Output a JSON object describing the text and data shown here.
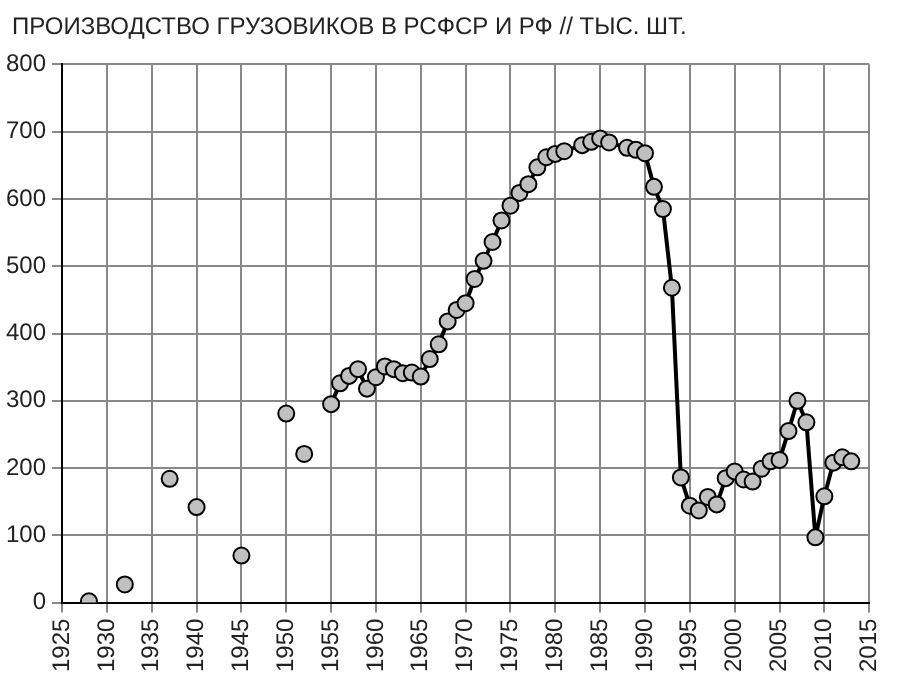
{
  "chart_data": {
    "type": "line",
    "title": "ПРОИЗВОДСТВО ГРУЗОВИКОВ В РСФСР И РФ // ТЫС. ШТ.",
    "xlim": [
      1925,
      2015
    ],
    "xticks": [
      1925,
      1930,
      1935,
      1940,
      1945,
      1950,
      1955,
      1960,
      1965,
      1970,
      1975,
      1980,
      1985,
      1990,
      1995,
      2000,
      2005,
      2010,
      2015
    ],
    "ylim": [
      0,
      800
    ],
    "yticks": [
      0,
      100,
      200,
      300,
      400,
      500,
      600,
      700,
      800
    ],
    "grid": true,
    "legend": false,
    "marker": "circle",
    "line_style": "solid",
    "series": [
      {
        "type": "scatter",
        "color": "#c0c0c0",
        "x": [
          1928,
          1932,
          1937,
          1940,
          1945,
          1950,
          1952
        ],
        "values": [
          2,
          27,
          184,
          142,
          70,
          281,
          221
        ]
      },
      {
        "type": "line",
        "color": "#000000",
        "x": [
          1955,
          1956,
          1957,
          1958,
          1959,
          1960,
          1961,
          1962,
          1963,
          1964,
          1965,
          1966,
          1967,
          1968,
          1969,
          1970,
          1971,
          1972,
          1973,
          1974,
          1975,
          1976,
          1977,
          1978,
          1979,
          1980,
          1981,
          1983,
          1984,
          1985,
          1986,
          1988,
          1989,
          1990,
          1991,
          1992,
          1993,
          1994,
          1995,
          1996,
          1997,
          1998,
          1999,
          2000,
          2001,
          2002,
          2003,
          2004,
          2005,
          2006,
          2007,
          2008,
          2009,
          2010,
          2011,
          2012,
          2013
        ],
        "values": [
          295,
          326,
          337,
          347,
          318,
          335,
          351,
          347,
          341,
          342,
          336,
          362,
          384,
          418,
          435,
          445,
          481,
          508,
          536,
          568,
          590,
          609,
          622,
          647,
          662,
          667,
          671,
          680,
          685,
          690,
          684,
          676,
          673,
          668,
          618,
          585,
          468,
          186,
          144,
          137,
          157,
          146,
          185,
          195,
          183,
          180,
          199,
          210,
          212,
          255,
          300,
          268,
          97,
          158,
          208,
          216,
          210
        ]
      }
    ]
  }
}
